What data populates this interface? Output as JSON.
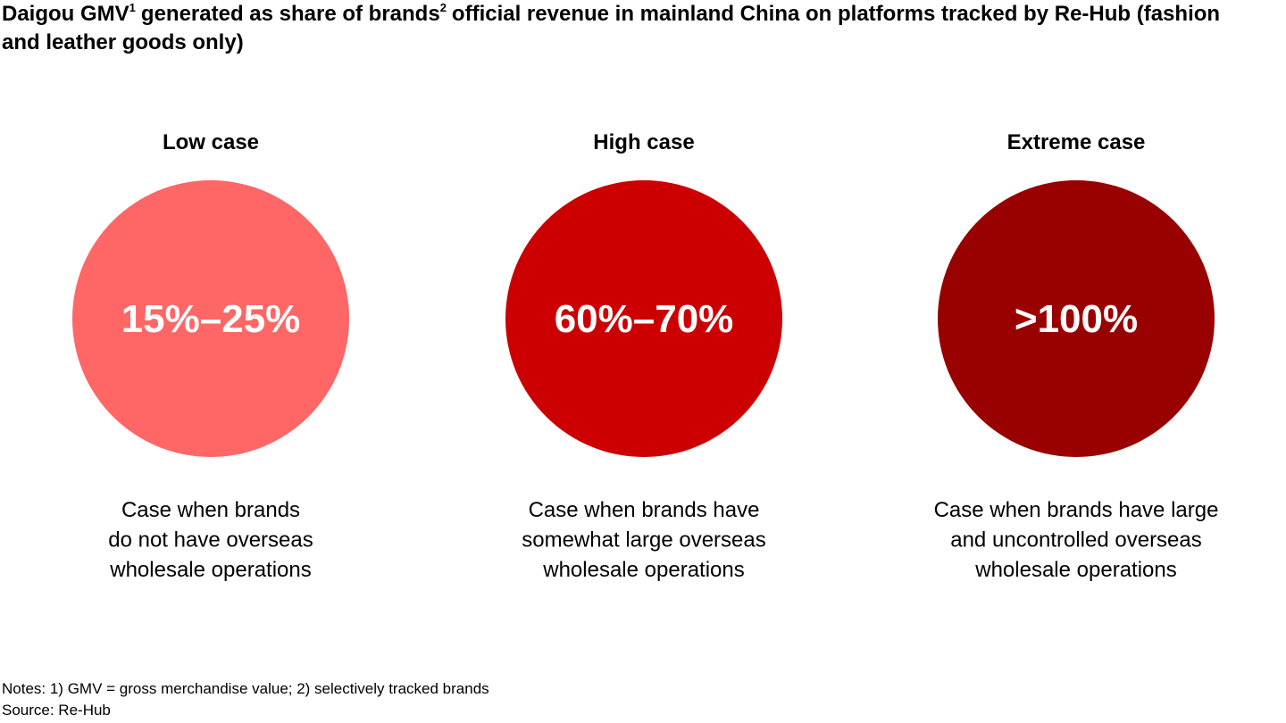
{
  "title": {
    "parts": [
      "Daigou GMV",
      "generated as share of brands",
      "official revenue in mainland China on platforms tracked by Re-Hub (fashion and leather goods only)"
    ],
    "superscripts": [
      "1",
      "2"
    ]
  },
  "cases": [
    {
      "label": "Low case",
      "value": "15%–25%",
      "color": "#ff6666",
      "description": [
        "Case when brands",
        "do not have overseas",
        "wholesale operations"
      ]
    },
    {
      "label": "High case",
      "value": "60%–70%",
      "color": "#cc0000",
      "description": [
        "Case when brands have",
        "somewhat large overseas",
        "wholesale operations"
      ]
    },
    {
      "label": "Extreme case",
      "value": ">100%",
      "color": "#990000",
      "description": [
        "Case when brands have large",
        "and uncontrolled overseas",
        "wholesale operations"
      ]
    }
  ],
  "notes": "Notes: 1) GMV = gross merchandise value; 2) selectively tracked brands",
  "source": "Source: Re-Hub"
}
